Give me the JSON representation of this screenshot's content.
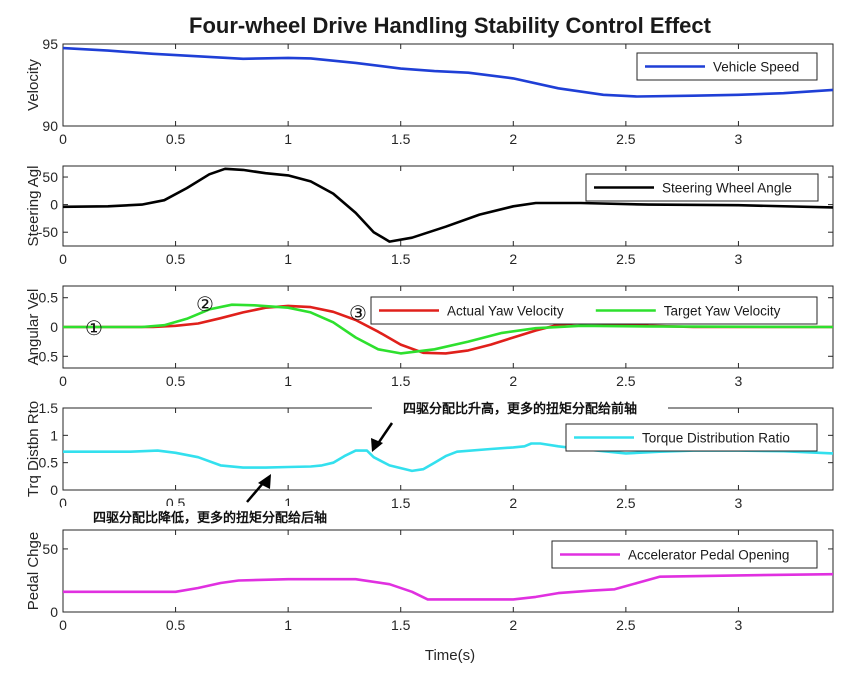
{
  "chart_data": {
    "type": "line",
    "title": "Four-wheel Drive Handling Stability Control Effect",
    "xlabel": "Time(s)",
    "xlim": [
      0,
      3.42
    ],
    "xticks": [
      0,
      0.5,
      1,
      1.5,
      2,
      2.5,
      3
    ],
    "colors": {
      "velocity": "#1f3fd6",
      "steering": "#000000",
      "actual_yaw": "#e0201b",
      "target_yaw": "#2ee02e",
      "torque": "#33e0ee",
      "pedal": "#e030e0"
    },
    "panels": [
      {
        "id": "velocity",
        "ylabel": "Velocity",
        "ylim": [
          90,
          95
        ],
        "yticks": [
          90,
          95
        ],
        "legend_position": "top-right",
        "series": [
          {
            "key": "velocity",
            "name": "Vehicle Speed",
            "points": [
              [
                0,
                94.75
              ],
              [
                0.2,
                94.6
              ],
              [
                0.4,
                94.4
              ],
              [
                0.6,
                94.25
              ],
              [
                0.8,
                94.1
              ],
              [
                1.0,
                94.15
              ],
              [
                1.1,
                94.12
              ],
              [
                1.3,
                93.85
              ],
              [
                1.5,
                93.5
              ],
              [
                1.65,
                93.35
              ],
              [
                1.8,
                93.25
              ],
              [
                2.0,
                92.9
              ],
              [
                2.2,
                92.3
              ],
              [
                2.4,
                91.9
              ],
              [
                2.55,
                91.8
              ],
              [
                2.8,
                91.85
              ],
              [
                3.0,
                91.9
              ],
              [
                3.2,
                92.0
              ],
              [
                3.42,
                92.2
              ]
            ]
          }
        ]
      },
      {
        "id": "steering",
        "ylabel": "Steering Agl",
        "ylim": [
          -75,
          70
        ],
        "yticks": [
          -50,
          0,
          50
        ],
        "legend_position": "top-right",
        "series": [
          {
            "key": "steering",
            "name": "Steering Wheel Angle",
            "points": [
              [
                0,
                -4
              ],
              [
                0.2,
                -3
              ],
              [
                0.35,
                0
              ],
              [
                0.45,
                8
              ],
              [
                0.55,
                30
              ],
              [
                0.65,
                55
              ],
              [
                0.72,
                65
              ],
              [
                0.8,
                63
              ],
              [
                0.9,
                57
              ],
              [
                1.0,
                53
              ],
              [
                1.1,
                42
              ],
              [
                1.2,
                20
              ],
              [
                1.3,
                -15
              ],
              [
                1.38,
                -50
              ],
              [
                1.45,
                -67
              ],
              [
                1.55,
                -60
              ],
              [
                1.7,
                -40
              ],
              [
                1.85,
                -18
              ],
              [
                2.0,
                -3
              ],
              [
                2.1,
                3
              ],
              [
                2.3,
                3
              ],
              [
                2.6,
                0
              ],
              [
                3.0,
                -1
              ],
              [
                3.42,
                -5
              ]
            ]
          }
        ]
      },
      {
        "id": "yaw",
        "ylabel": "Angular Vel",
        "ylim": [
          -0.7,
          0.7
        ],
        "yticks": [
          -0.5,
          0,
          0.5
        ],
        "legend_position": "top-right",
        "series": [
          {
            "key": "actual_yaw",
            "name": "Actual Yaw Velocity",
            "points": [
              [
                0,
                0
              ],
              [
                0.4,
                0
              ],
              [
                0.5,
                0.02
              ],
              [
                0.6,
                0.06
              ],
              [
                0.7,
                0.15
              ],
              [
                0.8,
                0.25
              ],
              [
                0.9,
                0.33
              ],
              [
                1.0,
                0.36
              ],
              [
                1.1,
                0.34
              ],
              [
                1.2,
                0.26
              ],
              [
                1.3,
                0.12
              ],
              [
                1.4,
                -0.08
              ],
              [
                1.5,
                -0.3
              ],
              [
                1.6,
                -0.44
              ],
              [
                1.7,
                -0.45
              ],
              [
                1.8,
                -0.4
              ],
              [
                1.9,
                -0.3
              ],
              [
                2.0,
                -0.18
              ],
              [
                2.1,
                -0.06
              ],
              [
                2.2,
                0.04
              ],
              [
                2.3,
                0.07
              ],
              [
                2.45,
                0.05
              ],
              [
                2.6,
                0.02
              ],
              [
                2.8,
                0
              ],
              [
                3.42,
                0
              ]
            ]
          },
          {
            "key": "target_yaw",
            "name": "Target Yaw Velocity",
            "points": [
              [
                0,
                0
              ],
              [
                0.35,
                0
              ],
              [
                0.45,
                0.03
              ],
              [
                0.55,
                0.14
              ],
              [
                0.65,
                0.3
              ],
              [
                0.75,
                0.38
              ],
              [
                0.85,
                0.37
              ],
              [
                1.0,
                0.33
              ],
              [
                1.1,
                0.25
              ],
              [
                1.2,
                0.08
              ],
              [
                1.3,
                -0.18
              ],
              [
                1.4,
                -0.38
              ],
              [
                1.5,
                -0.45
              ],
              [
                1.65,
                -0.38
              ],
              [
                1.8,
                -0.25
              ],
              [
                1.95,
                -0.1
              ],
              [
                2.1,
                -0.02
              ],
              [
                2.3,
                0.02
              ],
              [
                2.6,
                0.01
              ],
              [
                3.42,
                0
              ]
            ]
          }
        ]
      },
      {
        "id": "torque",
        "ylabel": "Trq Distbn Rto",
        "ylim": [
          0,
          1.5
        ],
        "yticks": [
          0,
          0.5,
          1,
          1.5
        ],
        "legend_position": "top-right",
        "series": [
          {
            "key": "torque",
            "name": "Torque Distribution Ratio",
            "points": [
              [
                0,
                0.7
              ],
              [
                0.3,
                0.7
              ],
              [
                0.42,
                0.72
              ],
              [
                0.5,
                0.68
              ],
              [
                0.6,
                0.6
              ],
              [
                0.7,
                0.45
              ],
              [
                0.8,
                0.41
              ],
              [
                0.9,
                0.41
              ],
              [
                1.0,
                0.42
              ],
              [
                1.1,
                0.43
              ],
              [
                1.15,
                0.45
              ],
              [
                1.2,
                0.5
              ],
              [
                1.25,
                0.62
              ],
              [
                1.3,
                0.72
              ],
              [
                1.35,
                0.72
              ],
              [
                1.38,
                0.6
              ],
              [
                1.45,
                0.45
              ],
              [
                1.55,
                0.35
              ],
              [
                1.6,
                0.38
              ],
              [
                1.65,
                0.5
              ],
              [
                1.7,
                0.62
              ],
              [
                1.75,
                0.7
              ],
              [
                1.9,
                0.75
              ],
              [
                2.0,
                0.78
              ],
              [
                2.05,
                0.8
              ],
              [
                2.08,
                0.85
              ],
              [
                2.12,
                0.85
              ],
              [
                2.2,
                0.8
              ],
              [
                2.3,
                0.75
              ],
              [
                2.5,
                0.67
              ],
              [
                2.65,
                0.7
              ],
              [
                2.8,
                0.72
              ],
              [
                3.0,
                0.72
              ],
              [
                3.2,
                0.71
              ],
              [
                3.42,
                0.67
              ]
            ]
          }
        ]
      },
      {
        "id": "pedal",
        "ylabel": "Pedal Chge",
        "ylim": [
          0,
          65
        ],
        "yticks": [
          0,
          50
        ],
        "legend_position": "top-right",
        "series": [
          {
            "key": "pedal",
            "name": "Accelerator Pedal Opening",
            "points": [
              [
                0,
                16
              ],
              [
                0.5,
                16
              ],
              [
                0.6,
                19
              ],
              [
                0.7,
                23
              ],
              [
                0.78,
                25
              ],
              [
                1.0,
                26
              ],
              [
                1.3,
                26
              ],
              [
                1.45,
                22
              ],
              [
                1.55,
                16
              ],
              [
                1.62,
                10
              ],
              [
                1.75,
                10
              ],
              [
                2.0,
                10
              ],
              [
                2.1,
                12
              ],
              [
                2.2,
                15
              ],
              [
                2.35,
                17
              ],
              [
                2.45,
                18
              ],
              [
                2.55,
                23
              ],
              [
                2.65,
                28
              ],
              [
                3.0,
                29
              ],
              [
                3.42,
                30
              ]
            ]
          }
        ]
      }
    ],
    "annotations": {
      "markers": [
        "①",
        "②",
        "③"
      ],
      "front_axle_note": "四驱分配比升高，更多的扭矩分配给前轴",
      "rear_axle_note": "四驱分配比降低，更多的扭矩分配给后轴"
    }
  }
}
